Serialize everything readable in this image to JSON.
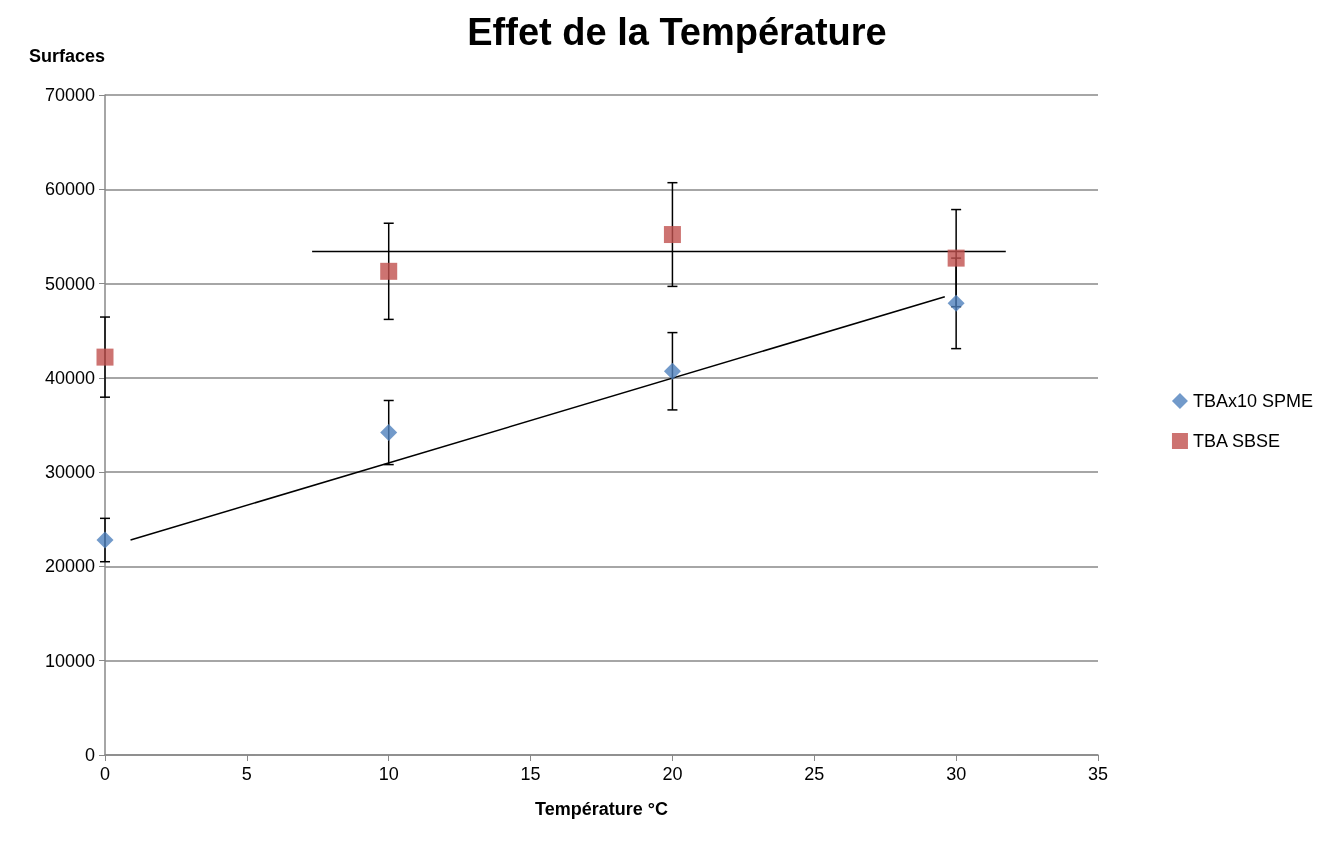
{
  "chart_data": {
    "type": "scatter",
    "title": "Effet de la Température",
    "xlabel": "Température °C",
    "ylabel": "Surfaces",
    "xlim": [
      0,
      35
    ],
    "xticks": [
      0,
      5,
      10,
      15,
      20,
      25,
      30,
      35
    ],
    "ylim": [
      0,
      70000
    ],
    "yticks": [
      0,
      10000,
      20000,
      30000,
      40000,
      50000,
      60000,
      70000
    ],
    "grid": "y",
    "legend": "right",
    "series": [
      {
        "name": "TBAx10 SPME",
        "color": "#4f81bd",
        "marker": "diamond",
        "x": [
          0,
          10,
          20,
          30
        ],
        "values": [
          22800,
          34200,
          40700,
          47900
        ],
        "errors": [
          2300,
          3400,
          4100,
          4800
        ]
      },
      {
        "name": "TBA SBSE",
        "color": "#c0504d",
        "marker": "square",
        "x": [
          0,
          10,
          20,
          30
        ],
        "values": [
          42200,
          51300,
          55200,
          52700
        ],
        "errors": [
          4250,
          5100,
          5500,
          5150
        ]
      },
      {
        "type": "line",
        "color": "#000000",
        "marker": "none",
        "x": [
          0.9,
          29.6
        ],
        "values": [
          22800,
          48600
        ]
      },
      {
        "type": "line",
        "color": "#000000",
        "marker": "none",
        "x": [
          7.3,
          31.75
        ],
        "values": [
          53400,
          53400
        ]
      }
    ]
  }
}
